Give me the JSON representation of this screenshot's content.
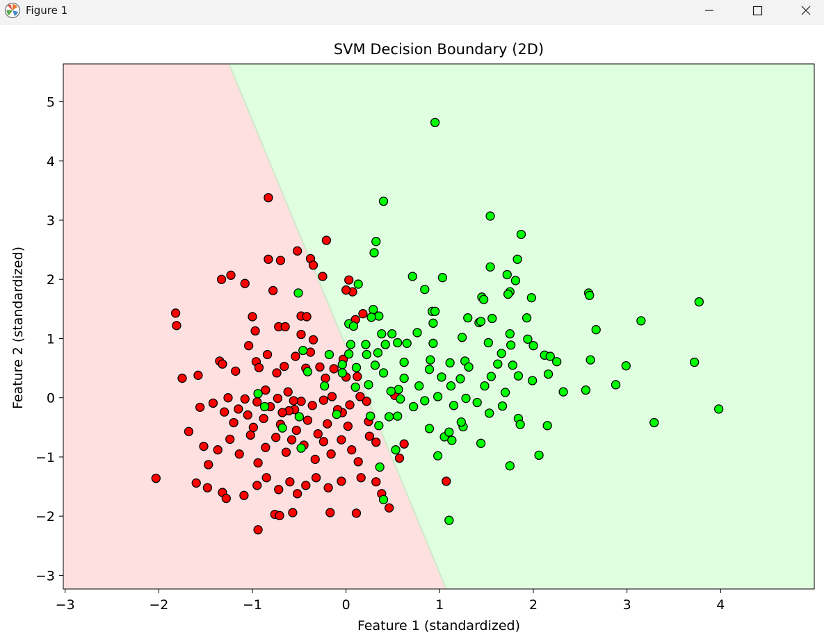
{
  "window": {
    "title": "Figure 1",
    "icons": {
      "app": "matplotlib-icon",
      "minimize": "minimize-icon",
      "maximize": "maximize-icon",
      "close": "close-icon"
    }
  },
  "chart_data": {
    "type": "scatter",
    "title": "SVM Decision Boundary (2D)",
    "xlabel": "Feature 1 (standardized)",
    "ylabel": "Feature 2 (standardized)",
    "xlim": [
      -3.02,
      5.0
    ],
    "ylim": [
      -3.23,
      5.64
    ],
    "xticks": [
      -3,
      -2,
      -1,
      0,
      1,
      2,
      3,
      4
    ],
    "yticks": [
      -3,
      -2,
      -1,
      0,
      1,
      2,
      3,
      4,
      5
    ],
    "grid": false,
    "background": "white",
    "decision_boundary": {
      "points": [
        [
          -1.25,
          5.64
        ],
        [
          1.07,
          -3.23
        ]
      ]
    },
    "regions": [
      {
        "side": "left",
        "color": "#ffe0e0"
      },
      {
        "side": "right",
        "color": "#e0ffe0"
      }
    ],
    "marker": {
      "shape": "circle",
      "edgecolor": "#000000"
    },
    "series": [
      {
        "color": "#ff0000",
        "points": [
          [
            -0.83,
            3.38
          ],
          [
            -0.83,
            2.34
          ],
          [
            -0.7,
            2.32
          ],
          [
            -0.52,
            2.48
          ],
          [
            -0.38,
            2.35
          ],
          [
            -0.35,
            2.24
          ],
          [
            -0.21,
            2.66
          ],
          [
            -1.33,
            2.0
          ],
          [
            -1.23,
            2.07
          ],
          [
            -1.08,
            1.93
          ],
          [
            -0.78,
            1.81
          ],
          [
            0.03,
            1.99
          ],
          [
            0.07,
            1.79
          ],
          [
            -0.25,
            2.05
          ],
          [
            0.0,
            1.82
          ],
          [
            -1.82,
            1.43
          ],
          [
            -1.81,
            1.22
          ],
          [
            -1.0,
            1.37
          ],
          [
            -0.97,
            1.13
          ],
          [
            -0.72,
            1.2
          ],
          [
            -0.65,
            1.2
          ],
          [
            -0.48,
            1.38
          ],
          [
            -0.42,
            1.37
          ],
          [
            -0.35,
            0.98
          ],
          [
            -0.48,
            1.07
          ],
          [
            0.1,
            1.32
          ],
          [
            0.18,
            1.42
          ],
          [
            -1.75,
            0.33
          ],
          [
            -1.58,
            0.38
          ],
          [
            -1.35,
            0.62
          ],
          [
            -1.32,
            0.57
          ],
          [
            -1.18,
            0.45
          ],
          [
            -1.04,
            0.88
          ],
          [
            -0.96,
            0.61
          ],
          [
            -0.93,
            0.51
          ],
          [
            -0.84,
            0.73
          ],
          [
            -0.74,
            0.42
          ],
          [
            -0.66,
            0.53
          ],
          [
            -0.54,
            0.7
          ],
          [
            -0.43,
            0.5
          ],
          [
            -0.38,
            0.77
          ],
          [
            -0.28,
            0.52
          ],
          [
            -0.22,
            0.33
          ],
          [
            -0.13,
            0.49
          ],
          [
            -0.03,
            0.65
          ],
          [
            -0.0,
            0.35
          ],
          [
            0.12,
            0.36
          ],
          [
            -1.56,
            -0.16
          ],
          [
            -1.42,
            -0.09
          ],
          [
            -1.3,
            -0.24
          ],
          [
            -1.26,
            0.0
          ],
          [
            -1.15,
            -0.19
          ],
          [
            -1.08,
            -0.02
          ],
          [
            -0.95,
            -0.07
          ],
          [
            -0.86,
            0.13
          ],
          [
            -0.73,
            -0.01
          ],
          [
            -0.62,
            0.1
          ],
          [
            -0.55,
            -0.2
          ],
          [
            -0.48,
            -0.06
          ],
          [
            -0.36,
            -0.13
          ],
          [
            -0.24,
            -0.04
          ],
          [
            -0.15,
            0.02
          ],
          [
            -0.04,
            -0.25
          ],
          [
            0.04,
            -0.12
          ],
          [
            0.15,
            0.02
          ],
          [
            0.22,
            -0.06
          ],
          [
            -1.68,
            -0.57
          ],
          [
            -1.52,
            -0.82
          ],
          [
            -1.47,
            -1.13
          ],
          [
            -1.37,
            -0.88
          ],
          [
            -1.24,
            -0.7
          ],
          [
            -1.14,
            -0.95
          ],
          [
            -1.02,
            -0.63
          ],
          [
            -0.94,
            -1.1
          ],
          [
            -0.86,
            -0.84
          ],
          [
            -0.75,
            -0.67
          ],
          [
            -0.64,
            -0.92
          ],
          [
            -0.58,
            -0.71
          ],
          [
            -0.45,
            -0.8
          ],
          [
            -0.33,
            -1.04
          ],
          [
            -0.24,
            -0.74
          ],
          [
            -0.16,
            -0.95
          ],
          [
            -0.05,
            -0.71
          ],
          [
            0.06,
            -0.88
          ],
          [
            0.13,
            -1.08
          ],
          [
            0.25,
            -0.65
          ],
          [
            -1.6,
            -1.44
          ],
          [
            -1.48,
            -1.52
          ],
          [
            -1.32,
            -1.6
          ],
          [
            -1.28,
            -1.7
          ],
          [
            -1.09,
            -1.65
          ],
          [
            -0.95,
            -1.48
          ],
          [
            -0.85,
            -1.35
          ],
          [
            -0.72,
            -1.55
          ],
          [
            -0.6,
            -1.42
          ],
          [
            -0.52,
            -1.62
          ],
          [
            -0.43,
            -1.48
          ],
          [
            -0.32,
            -1.35
          ],
          [
            -0.19,
            -1.52
          ],
          [
            -0.05,
            -1.41
          ],
          [
            0.16,
            -1.35
          ],
          [
            0.32,
            -1.42
          ],
          [
            0.38,
            -1.62
          ],
          [
            -2.03,
            -1.36
          ],
          [
            -0.76,
            -1.97
          ],
          [
            -0.71,
            -1.99
          ],
          [
            -0.57,
            -1.94
          ],
          [
            -0.17,
            -1.94
          ],
          [
            0.11,
            -1.95
          ],
          [
            0.46,
            -1.86
          ],
          [
            -0.94,
            -2.23
          ],
          [
            1.07,
            -1.41
          ],
          [
            0.57,
            -1.02
          ],
          [
            0.62,
            -0.78
          ],
          [
            -0.88,
            -0.35
          ],
          [
            -0.7,
            -0.45
          ],
          [
            -0.61,
            -0.22
          ],
          [
            -0.53,
            -0.55
          ],
          [
            -0.41,
            -0.38
          ],
          [
            -0.3,
            -0.61
          ],
          [
            -0.2,
            -0.44
          ],
          [
            -0.09,
            -0.2
          ],
          [
            0.02,
            -0.48
          ],
          [
            0.24,
            -0.4
          ],
          [
            0.32,
            -0.75
          ],
          [
            -1.2,
            -0.42
          ],
          [
            -1.05,
            -0.29
          ],
          [
            -0.99,
            -0.5
          ],
          [
            -0.81,
            -0.15
          ],
          [
            -0.68,
            -0.25
          ],
          [
            -0.56,
            -0.05
          ],
          [
            0.52,
            0.04
          ]
        ]
      },
      {
        "color": "#00ff00",
        "points": [
          [
            0.95,
            4.65
          ],
          [
            0.4,
            3.32
          ],
          [
            1.54,
            3.07
          ],
          [
            0.32,
            2.64
          ],
          [
            0.3,
            2.45
          ],
          [
            1.87,
            2.76
          ],
          [
            1.83,
            2.34
          ],
          [
            1.54,
            2.21
          ],
          [
            0.71,
            2.05
          ],
          [
            1.03,
            2.03
          ],
          [
            1.72,
            2.08
          ],
          [
            1.81,
            1.98
          ],
          [
            0.13,
            1.92
          ],
          [
            0.84,
            1.83
          ],
          [
            1.75,
            1.79
          ],
          [
            1.73,
            1.75
          ],
          [
            1.98,
            1.69
          ],
          [
            2.59,
            1.77
          ],
          [
            2.6,
            1.73
          ],
          [
            1.45,
            1.7
          ],
          [
            1.47,
            1.66
          ],
          [
            0.92,
            1.46
          ],
          [
            0.95,
            1.46
          ],
          [
            0.29,
            1.49
          ],
          [
            0.35,
            1.38
          ],
          [
            0.27,
            1.36
          ],
          [
            -0.51,
            1.77
          ],
          [
            1.3,
            1.35
          ],
          [
            1.56,
            1.34
          ],
          [
            1.93,
            1.35
          ],
          [
            0.93,
            1.26
          ],
          [
            1.42,
            1.27
          ],
          [
            1.44,
            1.29
          ],
          [
            3.77,
            1.62
          ],
          [
            3.15,
            1.3
          ],
          [
            2.67,
            1.15
          ],
          [
            0.03,
            1.25
          ],
          [
            0.08,
            1.21
          ],
          [
            0.38,
            1.08
          ],
          [
            0.49,
            1.08
          ],
          [
            0.76,
            1.1
          ],
          [
            0.93,
            0.92
          ],
          [
            1.24,
            1.02
          ],
          [
            1.75,
            1.08
          ],
          [
            1.94,
            0.99
          ],
          [
            0.21,
            0.9
          ],
          [
            0.42,
            0.9
          ],
          [
            0.55,
            0.93
          ],
          [
            0.65,
            0.92
          ],
          [
            0.05,
            0.9
          ],
          [
            0.03,
            0.74
          ],
          [
            -0.18,
            0.73
          ],
          [
            -0.46,
            0.8
          ],
          [
            0.9,
            0.64
          ],
          [
            0.62,
            0.6
          ],
          [
            1.11,
            0.59
          ],
          [
            1.27,
            0.62
          ],
          [
            1.52,
            0.93
          ],
          [
            1.66,
            0.75
          ],
          [
            1.76,
            0.89
          ],
          [
            2.0,
            0.88
          ],
          [
            2.12,
            0.72
          ],
          [
            2.18,
            0.7
          ],
          [
            2.25,
            0.61
          ],
          [
            0.34,
            0.76
          ],
          [
            0.22,
            0.73
          ],
          [
            0.31,
            0.55
          ],
          [
            0.11,
            0.51
          ],
          [
            -0.04,
            0.56
          ],
          [
            3.72,
            0.6
          ],
          [
            2.61,
            0.64
          ],
          [
            2.99,
            0.54
          ],
          [
            2.88,
            0.22
          ],
          [
            2.56,
            0.13
          ],
          [
            2.32,
            0.1
          ],
          [
            2.16,
            0.4
          ],
          [
            1.99,
            0.29
          ],
          [
            1.84,
            0.37
          ],
          [
            1.78,
            0.55
          ],
          [
            1.62,
            0.57
          ],
          [
            1.55,
            0.36
          ],
          [
            1.7,
            0.09
          ],
          [
            1.48,
            0.2
          ],
          [
            1.31,
            0.52
          ],
          [
            1.22,
            0.32
          ],
          [
            1.12,
            0.2
          ],
          [
            1.02,
            0.35
          ],
          [
            0.89,
            0.48
          ],
          [
            0.78,
            0.2
          ],
          [
            0.62,
            0.33
          ],
          [
            0.56,
            0.14
          ],
          [
            0.4,
            0.42
          ],
          [
            0.24,
            0.22
          ],
          [
            0.1,
            0.18
          ],
          [
            -0.04,
            0.42
          ],
          [
            -0.23,
            0.2
          ],
          [
            -0.41,
            0.44
          ],
          [
            0.48,
            0.11
          ],
          [
            0.58,
            -0.02
          ],
          [
            0.72,
            -0.15
          ],
          [
            0.84,
            -0.05
          ],
          [
            0.98,
            0.02
          ],
          [
            1.15,
            -0.13
          ],
          [
            1.28,
            -0.01
          ],
          [
            1.4,
            -0.08
          ],
          [
            1.53,
            -0.26
          ],
          [
            1.67,
            -0.14
          ],
          [
            1.84,
            -0.35
          ],
          [
            1.86,
            -0.45
          ],
          [
            2.15,
            -0.47
          ],
          [
            3.29,
            -0.42
          ],
          [
            3.98,
            -0.19
          ],
          [
            1.05,
            -0.66
          ],
          [
            1.1,
            -0.58
          ],
          [
            0.89,
            -0.52
          ],
          [
            1.25,
            -0.49
          ],
          [
            1.44,
            -0.77
          ],
          [
            1.23,
            -0.41
          ],
          [
            1.13,
            -0.72
          ],
          [
            0.98,
            -0.98
          ],
          [
            0.53,
            -0.88
          ],
          [
            0.35,
            -0.47
          ],
          [
            0.26,
            -0.31
          ],
          [
            0.46,
            -0.32
          ],
          [
            0.55,
            -0.31
          ],
          [
            1.75,
            -1.15
          ],
          [
            2.06,
            -0.97
          ],
          [
            0.36,
            -1.17
          ],
          [
            0.4,
            -1.72
          ],
          [
            1.1,
            -2.07
          ],
          [
            -0.87,
            -0.15
          ],
          [
            -0.94,
            0.07
          ],
          [
            -0.68,
            -0.51
          ],
          [
            -0.48,
            -0.85
          ],
          [
            -0.5,
            -0.32
          ],
          [
            -0.1,
            -0.28
          ]
        ]
      }
    ]
  }
}
